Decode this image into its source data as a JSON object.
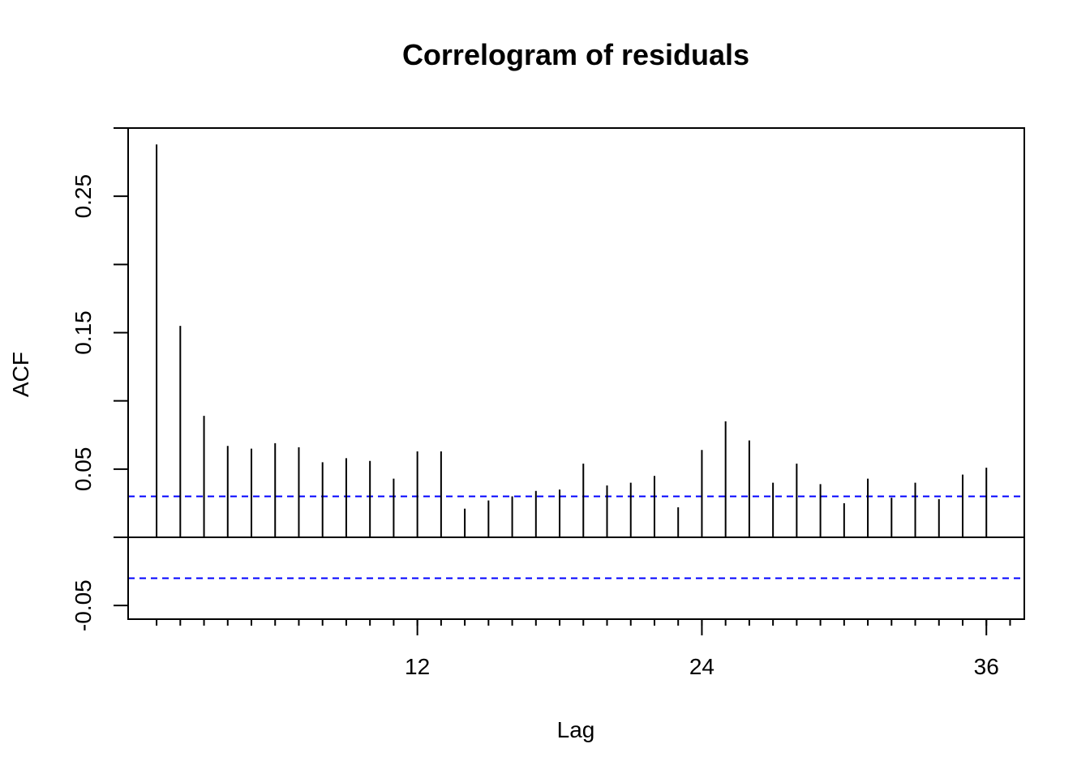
{
  "chart_data": {
    "type": "bar",
    "title": "Correlogram of residuals",
    "xlabel": "Lag",
    "ylabel": "ACF",
    "xlim": [
      -0.2,
      37.6
    ],
    "ylim": [
      -0.06,
      0.3
    ],
    "x_ticks": [
      12,
      24,
      36
    ],
    "x_minor_ticks": [
      1,
      2,
      3,
      4,
      5,
      6,
      7,
      8,
      9,
      10,
      11,
      12,
      13,
      14,
      15,
      16,
      17,
      18,
      19,
      20,
      21,
      22,
      23,
      24,
      25,
      26,
      27,
      28,
      29,
      30,
      31,
      32,
      33,
      34,
      35,
      36,
      37
    ],
    "y_ticks": [
      -0.05,
      0,
      0.05,
      0.1,
      0.15,
      0.2,
      0.25,
      0.3
    ],
    "y_tick_labels": [
      "-0.05",
      "",
      "0.05",
      "",
      "0.15",
      "",
      "0.25",
      ""
    ],
    "lags": [
      1,
      2,
      3,
      4,
      5,
      6,
      7,
      8,
      9,
      10,
      11,
      12,
      13,
      14,
      15,
      16,
      17,
      18,
      19,
      20,
      21,
      22,
      23,
      24,
      25,
      26,
      27,
      28,
      29,
      30,
      31,
      32,
      33,
      34,
      35,
      36
    ],
    "values": [
      0.288,
      0.155,
      0.089,
      0.067,
      0.065,
      0.069,
      0.066,
      0.055,
      0.058,
      0.056,
      0.043,
      0.063,
      0.063,
      0.021,
      0.027,
      0.03,
      0.034,
      0.035,
      0.054,
      0.038,
      0.04,
      0.045,
      0.022,
      0.064,
      0.085,
      0.071,
      0.04,
      0.054,
      0.039,
      0.025,
      0.043,
      0.029,
      0.04,
      0.028,
      0.046,
      0.051
    ],
    "confidence_bound": 0.03,
    "confidence_color": "#0000ff",
    "grid": false
  }
}
